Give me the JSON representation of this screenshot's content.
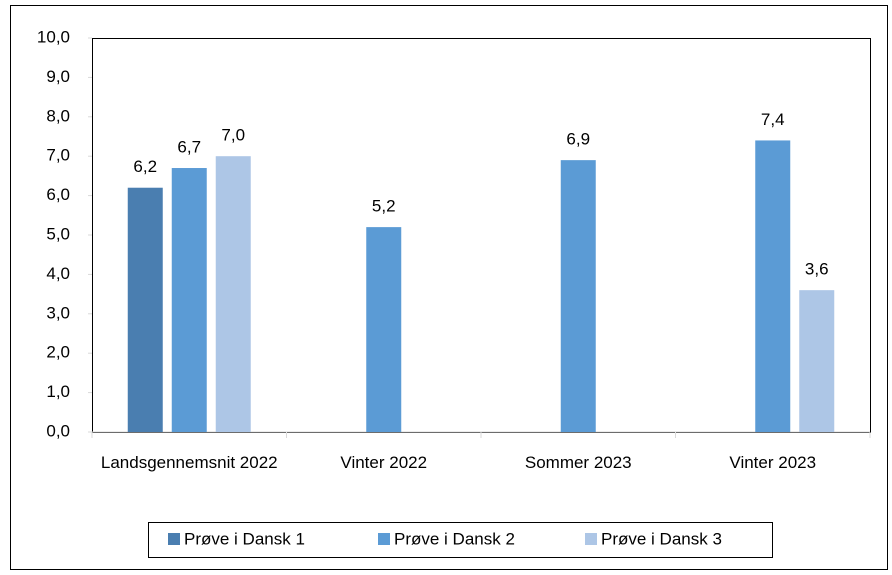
{
  "chart_data": {
    "type": "bar",
    "categories": [
      "Landsgennemsnit 2022",
      "Vinter 2022",
      "Sommer 2023",
      "Vinter 2023"
    ],
    "series": [
      {
        "name": "Prøve i Dansk 1",
        "color": "#4a7eb0",
        "values": [
          6.2,
          null,
          null,
          null
        ],
        "value_labels": [
          "6,2",
          null,
          null,
          null
        ]
      },
      {
        "name": "Prøve i Dansk 2",
        "color": "#5b9bd5",
        "values": [
          6.7,
          5.2,
          6.9,
          7.4
        ],
        "value_labels": [
          "6,7",
          "5,2",
          "6,9",
          "7,4"
        ]
      },
      {
        "name": "Prøve i Dansk 3",
        "color": "#adc6e6",
        "values": [
          7.0,
          null,
          null,
          3.6
        ],
        "value_labels": [
          "7,0",
          null,
          null,
          "3,6"
        ]
      }
    ],
    "ylim": [
      0,
      10
    ],
    "yticks": [
      {
        "value": 0,
        "label": "0,0"
      },
      {
        "value": 1,
        "label": "1,0"
      },
      {
        "value": 2,
        "label": "2,0"
      },
      {
        "value": 3,
        "label": "3,0"
      },
      {
        "value": 4,
        "label": "4,0"
      },
      {
        "value": 5,
        "label": "5,0"
      },
      {
        "value": 6,
        "label": "6,0"
      },
      {
        "value": 7,
        "label": "7,0"
      },
      {
        "value": 8,
        "label": "8,0"
      },
      {
        "value": 9,
        "label": "9,0"
      },
      {
        "value": 10,
        "label": "10,0"
      }
    ],
    "legend": "bottom"
  }
}
